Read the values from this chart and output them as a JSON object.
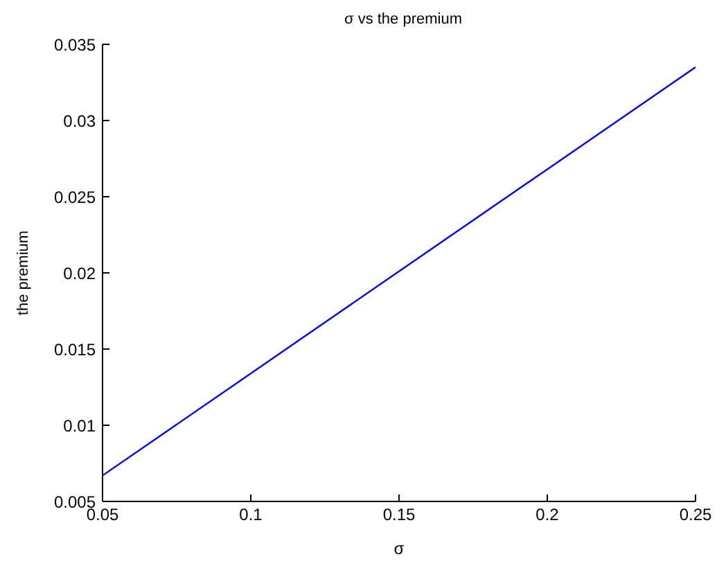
{
  "chart_data": {
    "type": "line",
    "title": "σ  vs the premium",
    "xlabel": "σ",
    "ylabel": "the premium",
    "x": [
      0.05,
      0.1,
      0.15,
      0.2,
      0.25
    ],
    "series": [
      {
        "color": "#0000ff",
        "values": [
          0.0067,
          0.0134,
          0.0201,
          0.0268,
          0.0335
        ]
      }
    ],
    "xlim": [
      0.05,
      0.25
    ],
    "xticks": [
      0.05,
      0.1,
      0.15,
      0.2,
      0.25
    ],
    "ylim": [
      0.005,
      0.035
    ],
    "yticks": [
      0.005,
      0.01,
      0.015,
      0.02,
      0.025,
      0.03,
      0.035
    ],
    "grid": false,
    "legend": false,
    "marker": "none",
    "line_style": "solid"
  }
}
